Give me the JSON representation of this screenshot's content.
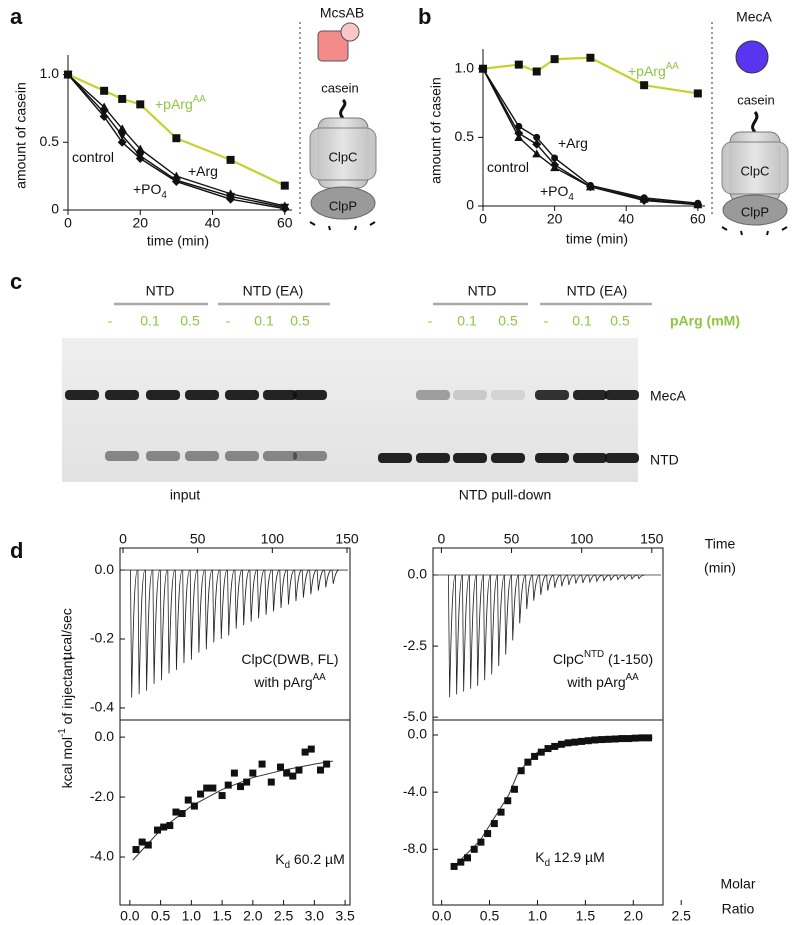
{
  "panel_labels": [
    "a",
    "b",
    "c",
    "d"
  ],
  "chart_data": [
    {
      "type": "line",
      "xlabel": "time (min)",
      "ylabel": "amount of casein",
      "x": [
        0,
        10,
        15,
        20,
        30,
        45,
        60
      ],
      "xlim": [
        0,
        62
      ],
      "ylim": [
        0,
        1.1
      ],
      "xticks": [
        0,
        20,
        40,
        60
      ],
      "yticks": [
        0,
        0.5,
        {
          "value": 1,
          "label": "1.0"
        }
      ],
      "series": [
        {
          "name": "+pArg",
          "sup": "AA",
          "color": "#c5d22e",
          "label_color": "#8dc63f",
          "marker": "square",
          "values": [
            1.0,
            0.88,
            0.82,
            0.78,
            0.53,
            0.37,
            0.18
          ]
        },
        {
          "name": "control",
          "color": "#111111",
          "marker": "tri-down",
          "values": [
            1.0,
            0.72,
            0.55,
            0.4,
            0.22,
            0.1,
            0.02
          ]
        },
        {
          "name": "+Arg",
          "color": "#111111",
          "marker": "tri-up",
          "values": [
            1.0,
            0.76,
            0.6,
            0.45,
            0.25,
            0.12,
            0.03
          ]
        },
        {
          "name": "+PO",
          "sub": "4",
          "color": "#111111",
          "marker": "diamond",
          "values": [
            1.0,
            0.69,
            0.5,
            0.38,
            0.21,
            0.08,
            0.01
          ]
        }
      ]
    },
    {
      "type": "line",
      "xlabel": "time (min)",
      "ylabel": "amount of casein",
      "x": [
        0,
        10,
        15,
        20,
        30,
        45,
        60
      ],
      "xlim": [
        0,
        62
      ],
      "ylim": [
        0,
        1.1
      ],
      "xticks": [
        0,
        20,
        40,
        60
      ],
      "yticks": [
        0,
        0.5,
        {
          "value": 1,
          "label": "1.0"
        }
      ],
      "series": [
        {
          "name": "+pArg",
          "sup": "AA",
          "color": "#c5d22e",
          "label_color": "#8dc63f",
          "marker": "square",
          "values": [
            1.0,
            1.03,
            0.98,
            1.07,
            1.08,
            0.88,
            0.82
          ]
        },
        {
          "name": "+Arg",
          "color": "#111111",
          "marker": "circle",
          "values": [
            1.0,
            0.58,
            0.5,
            0.35,
            0.15,
            0.06,
            0.02
          ]
        },
        {
          "name": "control",
          "color": "#111111",
          "marker": "tri-up",
          "values": [
            1.0,
            0.5,
            0.38,
            0.28,
            0.14,
            0.05,
            0.01
          ]
        },
        {
          "name": "+PO",
          "sub": "4",
          "color": "#111111",
          "marker": "diamond",
          "values": [
            1.0,
            0.53,
            0.45,
            0.3,
            0.14,
            0.04,
            0.01
          ]
        }
      ]
    },
    {
      "type": "itc-raw",
      "ylabel": "µcal/sec",
      "xlim": [
        -2,
        152
      ],
      "ylim": [
        -0.435,
        0.064
      ],
      "xticks": [
        0,
        50,
        100,
        150
      ],
      "yticks": [
        {
          "value": 0,
          "label": "0.0"
        },
        -0.2,
        -0.4
      ],
      "annotation": [
        {
          "text": "ClpC(DWB, FL)"
        },
        {
          "text": "with pArg",
          "sup": "AA"
        }
      ],
      "peak_time": [
        5,
        10,
        15,
        20,
        25,
        30,
        35,
        40,
        45,
        50,
        55,
        60,
        65,
        70,
        75,
        80,
        85,
        90,
        95,
        100,
        105,
        110,
        115,
        120,
        125,
        130,
        135,
        140
      ],
      "peak_depth": [
        -0.37,
        -0.36,
        -0.35,
        -0.33,
        -0.32,
        -0.3,
        -0.29,
        -0.27,
        -0.26,
        -0.24,
        -0.23,
        -0.21,
        -0.2,
        -0.19,
        -0.17,
        -0.16,
        -0.15,
        -0.14,
        -0.13,
        -0.12,
        -0.11,
        -0.1,
        -0.09,
        -0.08,
        -0.07,
        -0.06,
        -0.05,
        -0.04
      ]
    },
    {
      "type": "itc-fit",
      "ylabel": "kcal mol",
      "ylabel_sup": "-1",
      "ylabel_end": " of injectant",
      "xlim": [
        -0.16,
        3.58
      ],
      "ylim": [
        -5.6,
        0.57
      ],
      "xticks": [
        {
          "value": 0,
          "label": "0.0"
        },
        0.5,
        {
          "value": 1,
          "label": "1.0"
        },
        1.5,
        {
          "value": 2,
          "label": "2.0"
        },
        2.5,
        {
          "value": 3,
          "label": "3.0"
        },
        3.5
      ],
      "yticks": [
        {
          "value": 0,
          "label": "0.0"
        },
        {
          "value": -2,
          "label": "-2.0"
        },
        {
          "value": -4,
          "label": "-4.0"
        }
      ],
      "kd": {
        "text": "K",
        "sub": "d",
        "end": " 60.2 µM"
      },
      "x": [
        0.1,
        0.2,
        0.3,
        0.45,
        0.55,
        0.65,
        0.75,
        0.85,
        0.95,
        1.05,
        1.15,
        1.25,
        1.35,
        1.5,
        1.6,
        1.7,
        1.8,
        1.9,
        2.0,
        2.15,
        2.3,
        2.45,
        2.55,
        2.65,
        2.75,
        2.85,
        2.95,
        3.1,
        3.2
      ],
      "values": [
        -3.75,
        -3.5,
        -3.6,
        -3.1,
        -3.0,
        -2.95,
        -2.5,
        -2.55,
        -2.1,
        -2.3,
        -1.9,
        -1.7,
        -1.7,
        -1.95,
        -1.6,
        -1.2,
        -1.65,
        -1.5,
        -1.2,
        -0.9,
        -1.5,
        -1.0,
        -1.2,
        -1.3,
        -1.1,
        -0.5,
        -0.4,
        -1.1,
        -0.9
      ],
      "fit": {
        "x": [
          0.05,
          0.5,
          1.0,
          1.5,
          2.0,
          2.5,
          3.0,
          3.3
        ],
        "y": [
          -4.1,
          -3.1,
          -2.3,
          -1.75,
          -1.35,
          -1.1,
          -0.9,
          -0.8
        ]
      }
    },
    {
      "type": "itc-raw",
      "ylabel": null,
      "xlabel": [
        "Time",
        "(min)"
      ],
      "xlim": [
        -6,
        158
      ],
      "ylim": [
        -5.1,
        0.95
      ],
      "xticks": [
        0,
        50,
        100,
        150
      ],
      "yticks": [
        {
          "value": 0,
          "label": "0.0"
        },
        -2.5,
        {
          "value": -5,
          "label": "-5.0"
        }
      ],
      "annotation": [
        {
          "text": "ClpC",
          "sup": "NTD",
          "end": " (1-150)"
        },
        {
          "text": "with pArg",
          "sup": "AA"
        }
      ],
      "peak_time": [
        5,
        10,
        15,
        20,
        25,
        30,
        35,
        40,
        45,
        50,
        55,
        60,
        65,
        70,
        75,
        80,
        85,
        90,
        95,
        100,
        105,
        110,
        115,
        120,
        125,
        130,
        135,
        140
      ],
      "peak_depth": [
        -4.3,
        -4.2,
        -4.1,
        -4.0,
        -3.9,
        -3.7,
        -3.5,
        -3.2,
        -2.8,
        -2.3,
        -1.7,
        -1.2,
        -0.9,
        -0.7,
        -0.55,
        -0.45,
        -0.4,
        -0.35,
        -0.3,
        -0.28,
        -0.25,
        -0.22,
        -0.2,
        -0.18,
        -0.16,
        -0.15,
        -0.14,
        -0.13
      ]
    },
    {
      "type": "itc-fit",
      "xlabel": [
        "Molar",
        "Ratio"
      ],
      "xlim": [
        -0.09,
        2.31
      ],
      "ylim": [
        -11.9,
        1.05
      ],
      "xticks": [
        {
          "value": 0,
          "label": "0.0"
        },
        0.5,
        {
          "value": 1,
          "label": "1.0"
        },
        1.5,
        {
          "value": 2,
          "label": "2.0"
        },
        2.5
      ],
      "yticks": [
        {
          "value": 0,
          "label": "0.0"
        },
        {
          "value": -4,
          "label": "-4.0"
        },
        {
          "value": -8,
          "label": "-8.0"
        }
      ],
      "kd": {
        "text": "K",
        "sub": "d",
        "end": " 12.9 µM"
      },
      "x": [
        0.13,
        0.2,
        0.27,
        0.34,
        0.41,
        0.48,
        0.55,
        0.62,
        0.69,
        0.76,
        0.83,
        0.9,
        0.97,
        1.04,
        1.11,
        1.18,
        1.25,
        1.32,
        1.39,
        1.46,
        1.53,
        1.6,
        1.67,
        1.74,
        1.81,
        1.88,
        1.95,
        2.02,
        2.09,
        2.16
      ],
      "values": [
        -9.2,
        -8.9,
        -8.6,
        -8.0,
        -7.5,
        -6.9,
        -6.2,
        -5.4,
        -4.6,
        -3.8,
        -2.5,
        -1.9,
        -1.5,
        -1.2,
        -0.95,
        -0.8,
        -0.65,
        -0.55,
        -0.5,
        -0.45,
        -0.4,
        -0.35,
        -0.32,
        -0.3,
        -0.28,
        -0.25,
        -0.25,
        -0.22,
        -0.2,
        -0.2
      ],
      "fit": {
        "x": [
          0.1,
          0.4,
          0.7,
          0.8,
          1.0,
          1.5,
          2.2
        ],
        "y": [
          -9.4,
          -7.4,
          -4.2,
          -2.6,
          -1.2,
          -0.45,
          -0.2
        ]
      }
    }
  ],
  "cartoons": {
    "a": {
      "protein": "McsAB",
      "substrate": "casein",
      "upper": "ClpC",
      "lower": "ClpP"
    },
    "b": {
      "protein": "MecA",
      "substrate": "casein",
      "upper": "ClpC",
      "lower": "ClpP"
    }
  },
  "gel": {
    "groups": [
      "NTD",
      "NTD (EA)",
      "NTD",
      "NTD (EA)"
    ],
    "lanes": [
      "-",
      "0.1",
      "0.5",
      "-",
      "0.1",
      "0.5",
      "-",
      "0.1",
      "0.5",
      "-",
      "0.1",
      "0.5"
    ],
    "conc_label": "pArg (mM)",
    "bands": [
      "MecA",
      "NTD"
    ],
    "captions": [
      "input",
      "NTD pull-down"
    ]
  }
}
